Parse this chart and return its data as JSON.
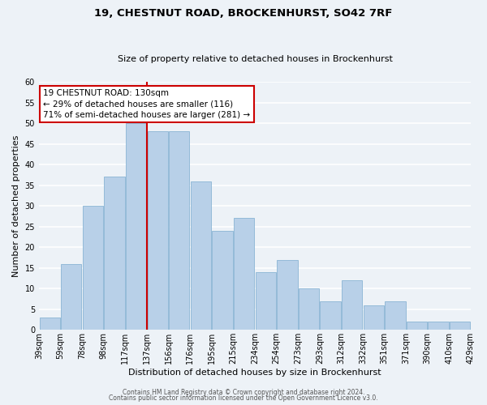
{
  "title": "19, CHESTNUT ROAD, BROCKENHURST, SO42 7RF",
  "subtitle": "Size of property relative to detached houses in Brockenhurst",
  "xlabel": "Distribution of detached houses by size in Brockenhurst",
  "ylabel": "Number of detached properties",
  "bins": [
    "39sqm",
    "59sqm",
    "78sqm",
    "98sqm",
    "117sqm",
    "137sqm",
    "156sqm",
    "176sqm",
    "195sqm",
    "215sqm",
    "234sqm",
    "254sqm",
    "273sqm",
    "293sqm",
    "312sqm",
    "332sqm",
    "351sqm",
    "371sqm",
    "390sqm",
    "410sqm",
    "429sqm"
  ],
  "values": [
    3,
    16,
    30,
    37,
    50,
    48,
    48,
    36,
    24,
    27,
    14,
    17,
    10,
    7,
    12,
    6,
    7,
    2,
    2,
    2
  ],
  "bar_color": "#b8d0e8",
  "bar_edge_color": "#8ab4d4",
  "vline_color": "#cc0000",
  "vline_x_index": 4,
  "annotation_text": "19 CHESTNUT ROAD: 130sqm\n← 29% of detached houses are smaller (116)\n71% of semi-detached houses are larger (281) →",
  "annotation_box_color": "#ffffff",
  "annotation_box_edge": "#cc0000",
  "ylim": [
    0,
    60
  ],
  "yticks": [
    0,
    5,
    10,
    15,
    20,
    25,
    30,
    35,
    40,
    45,
    50,
    55,
    60
  ],
  "footer1": "Contains HM Land Registry data © Crown copyright and database right 2024.",
  "footer2": "Contains public sector information licensed under the Open Government Licence v3.0.",
  "bg_color": "#edf2f7",
  "plot_bg_color": "#edf2f7",
  "title_fontsize": 9.5,
  "subtitle_fontsize": 8,
  "axis_label_fontsize": 8,
  "tick_fontsize": 7,
  "footer_fontsize": 5.5
}
